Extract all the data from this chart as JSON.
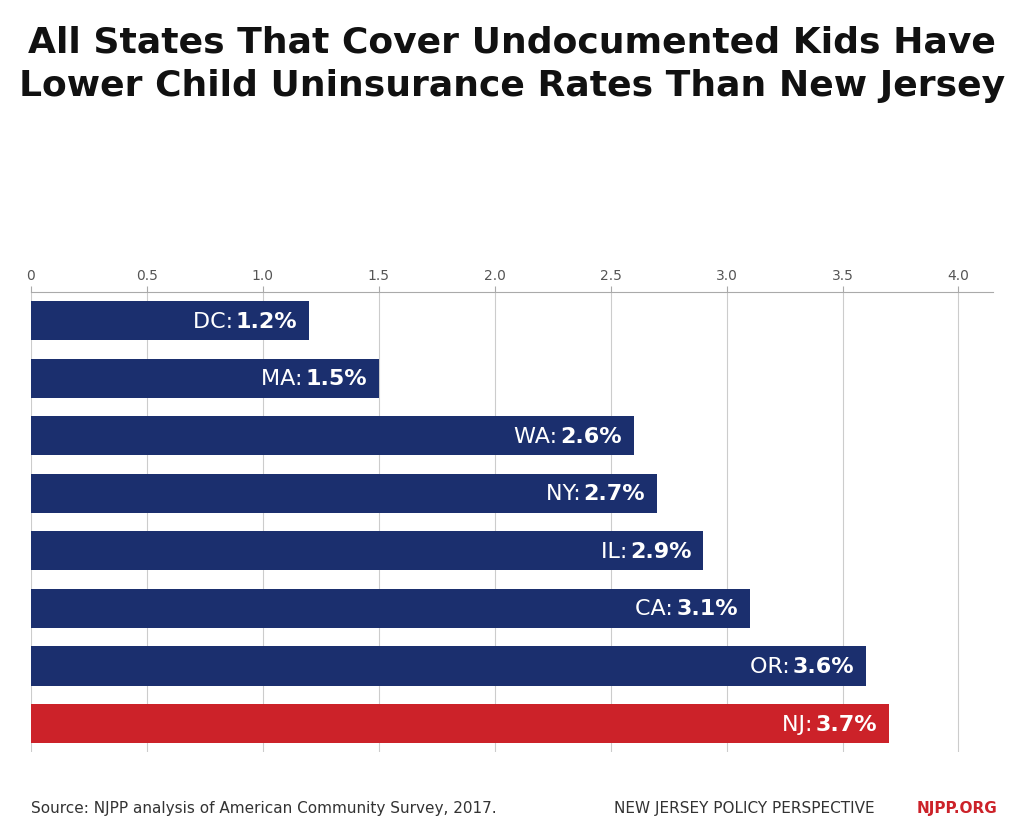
{
  "title_line1": "All States That Cover Undocumented Kids Have",
  "title_line2": "Lower Child Uninsurance Rates Than New Jersey",
  "categories": [
    "DC",
    "MA",
    "WA",
    "NY",
    "IL",
    "CA",
    "OR",
    "NJ"
  ],
  "values": [
    1.2,
    1.5,
    2.6,
    2.7,
    2.9,
    3.1,
    3.6,
    3.7
  ],
  "labels": [
    "DC: 1.2%",
    "MA: 1.5%",
    "WA: 2.6%",
    "NY: 2.7%",
    "IL: 2.9%",
    "CA: 3.1%",
    "OR: 3.6%",
    "NJ: 3.7%"
  ],
  "bar_colors": [
    "#1b2f6e",
    "#1b2f6e",
    "#1b2f6e",
    "#1b2f6e",
    "#1b2f6e",
    "#1b2f6e",
    "#1b2f6e",
    "#cc2229"
  ],
  "xlim": [
    0,
    4.15
  ],
  "xticks": [
    0.0,
    0.5,
    1.0,
    1.5,
    2.0,
    2.5,
    3.0,
    3.5,
    4.0
  ],
  "xtick_labels": [
    "0",
    "0.5",
    "1.0",
    "1.5",
    "2.0",
    "2.5",
    "3.0",
    "3.5",
    "4.0"
  ],
  "background_color": "#ffffff",
  "grid_color": "#cccccc",
  "title_fontsize": 26,
  "label_fontsize": 16,
  "bar_height": 0.68,
  "source_text": "Source: NJPP analysis of American Community Survey, 2017.",
  "footer_center": "NEW JERSEY POLICY PERSPECTIVE",
  "footer_right": "NJPP.ORG",
  "footer_fontsize": 11,
  "source_fontsize": 11
}
